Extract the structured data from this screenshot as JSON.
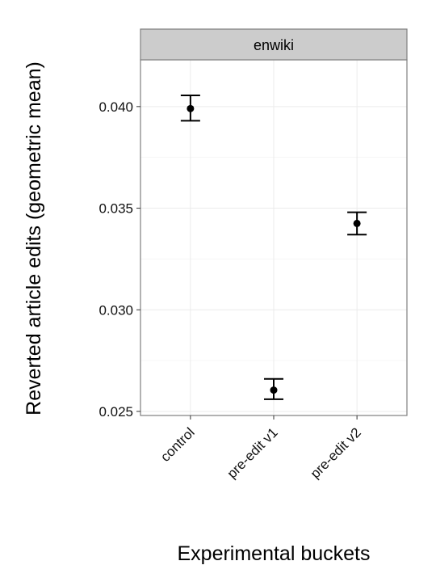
{
  "chart_data": {
    "type": "scatter",
    "facet_label": "enwiki",
    "xlabel": "Experimental buckets",
    "ylabel": "Reverted article edits (geometric mean)",
    "categories": [
      "control",
      "pre-edit v1",
      "pre-edit v2"
    ],
    "series": [
      {
        "values": [
          0.0399,
          0.02605,
          0.03425
        ],
        "lower": [
          0.0393,
          0.0256,
          0.0337
        ],
        "upper": [
          0.04055,
          0.0266,
          0.0348
        ]
      }
    ],
    "ylim": [
      0.0248,
      0.0423
    ],
    "yticks": [
      0.025,
      0.03,
      0.035,
      0.04
    ],
    "ytick_labels": [
      "0.025",
      "0.030",
      "0.035",
      "0.040"
    ],
    "grid": true,
    "colors": {
      "point": "#000000",
      "strip_background": "#cccccc",
      "panel_border": "#7f7f7f",
      "grid": "#ebebeb"
    }
  }
}
